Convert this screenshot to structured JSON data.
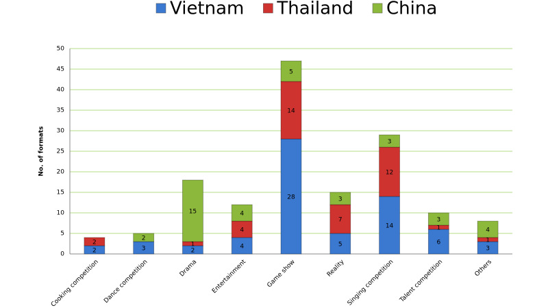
{
  "chart_data": {
    "type": "stacked-bar",
    "y_label": "No. of formats",
    "categories": [
      "Cooking competition",
      "Dance competition",
      "Drama",
      "Entertainment",
      "Game show",
      "Reality",
      "Singing competition",
      "Talent competition",
      "Others"
    ],
    "series": [
      {
        "name": "Vietnam",
        "color": "#3b78cf",
        "values": [
          2,
          3,
          2,
          4,
          28,
          5,
          14,
          6,
          3
        ]
      },
      {
        "name": "Thailand",
        "color": "#cf3330",
        "values": [
          2,
          null,
          1,
          4,
          14,
          7,
          12,
          1,
          1
        ]
      },
      {
        "name": "China",
        "color": "#8cb83c",
        "values": [
          null,
          2,
          15,
          4,
          5,
          3,
          3,
          3,
          4
        ]
      }
    ],
    "ylim": [
      0,
      50
    ],
    "yticks": [
      0,
      5,
      10,
      15,
      20,
      25,
      30,
      35,
      40,
      45,
      50
    ],
    "grid": true,
    "legend": "top"
  }
}
